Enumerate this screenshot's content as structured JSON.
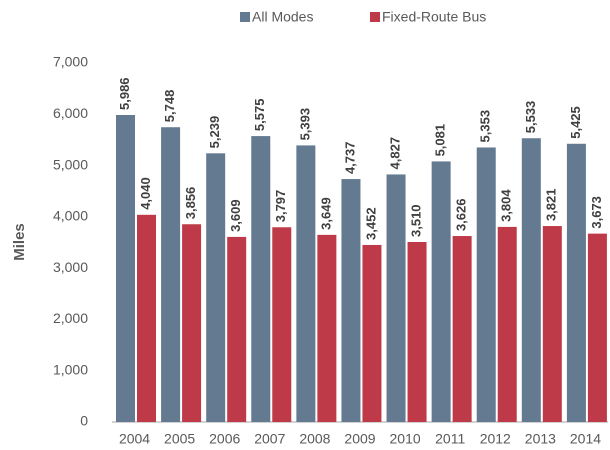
{
  "chart_data": {
    "type": "bar",
    "y_label": "Miles",
    "categories": [
      "2004",
      "2005",
      "2006",
      "2007",
      "2008",
      "2009",
      "2010",
      "2011",
      "2012",
      "2013",
      "2014"
    ],
    "series": [
      {
        "name": "All Modes",
        "color": "#647a91",
        "values": [
          5986,
          5748,
          5239,
          5575,
          5393,
          4737,
          4827,
          5081,
          5353,
          5533,
          5425
        ],
        "value_labels": [
          "5,986",
          "5,748",
          "5,239",
          "5,575",
          "5,393",
          "4,737",
          "4,827",
          "5,081",
          "5,353",
          "5,533",
          "5,425"
        ]
      },
      {
        "name": "Fixed-Route Bus",
        "color": "#be3a48",
        "values": [
          4040,
          3856,
          3609,
          3797,
          3649,
          3452,
          3510,
          3626,
          3804,
          3821,
          3673
        ],
        "value_labels": [
          "4,040",
          "3,856",
          "3,609",
          "3,797",
          "3,649",
          "3,452",
          "3,510",
          "3,626",
          "3,804",
          "3,821",
          "3,673"
        ]
      }
    ],
    "ylim": [
      0,
      7000
    ],
    "yticks": [
      0,
      {
        "value": 1000,
        "label": "1,000"
      },
      {
        "value": 2000,
        "label": "2,000"
      },
      {
        "value": 3000,
        "label": "3,000"
      },
      {
        "value": 4000,
        "label": "4,000"
      },
      {
        "value": 5000,
        "label": "5,000"
      },
      {
        "value": 6000,
        "label": "6,000"
      },
      {
        "value": 7000,
        "label": "7,000"
      }
    ],
    "legend": "top",
    "grid": false
  }
}
